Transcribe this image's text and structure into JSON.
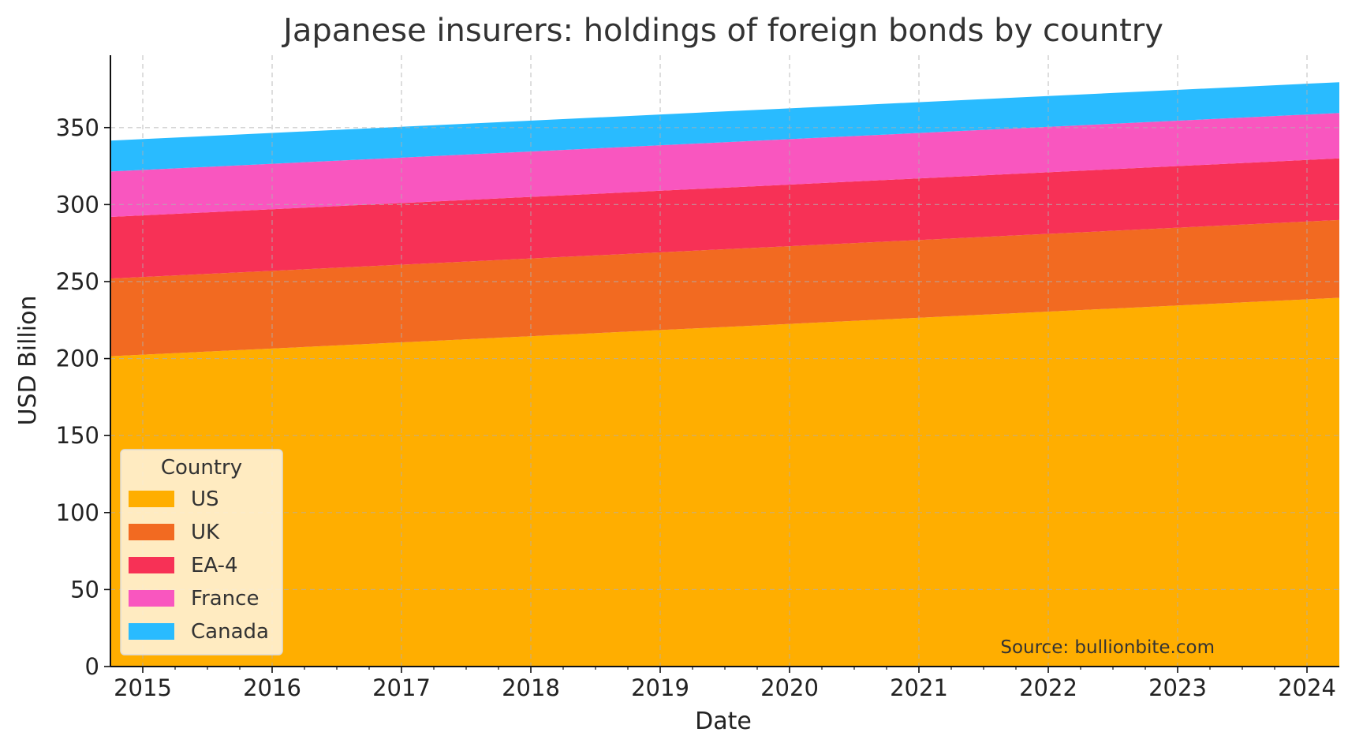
{
  "chart_data": {
    "type": "area",
    "stacked": true,
    "title": "Japanese insurers: holdings of foreign bonds by country",
    "xlabel": "Date",
    "ylabel": "USD Billion",
    "x_ticks": [
      "2015",
      "2016",
      "2017",
      "2018",
      "2019",
      "2020",
      "2021",
      "2022",
      "2023",
      "2024"
    ],
    "x_range": [
      "2014-10",
      "2024-04"
    ],
    "ylim": [
      0,
      397
    ],
    "y_ticks": [
      0,
      50,
      100,
      150,
      200,
      250,
      300,
      350
    ],
    "grid": true,
    "legend": {
      "title": "Country",
      "placement": "lower-left"
    },
    "source": "Source: bullionbite.com",
    "x": [
      "2014-10",
      "2024-04"
    ],
    "series": [
      {
        "name": "US",
        "color": "#FFAE00",
        "values": [
          201.5,
          239.5
        ]
      },
      {
        "name": "UK",
        "color": "#F26A21",
        "values": [
          50.5,
          50.5
        ]
      },
      {
        "name": "EA-4",
        "color": "#F73156",
        "values": [
          40,
          40
        ]
      },
      {
        "name": "France",
        "color": "#F956BF",
        "values": [
          29.5,
          29.5
        ]
      },
      {
        "name": "Canada",
        "color": "#29BBFF",
        "values": [
          20,
          20
        ]
      }
    ]
  }
}
